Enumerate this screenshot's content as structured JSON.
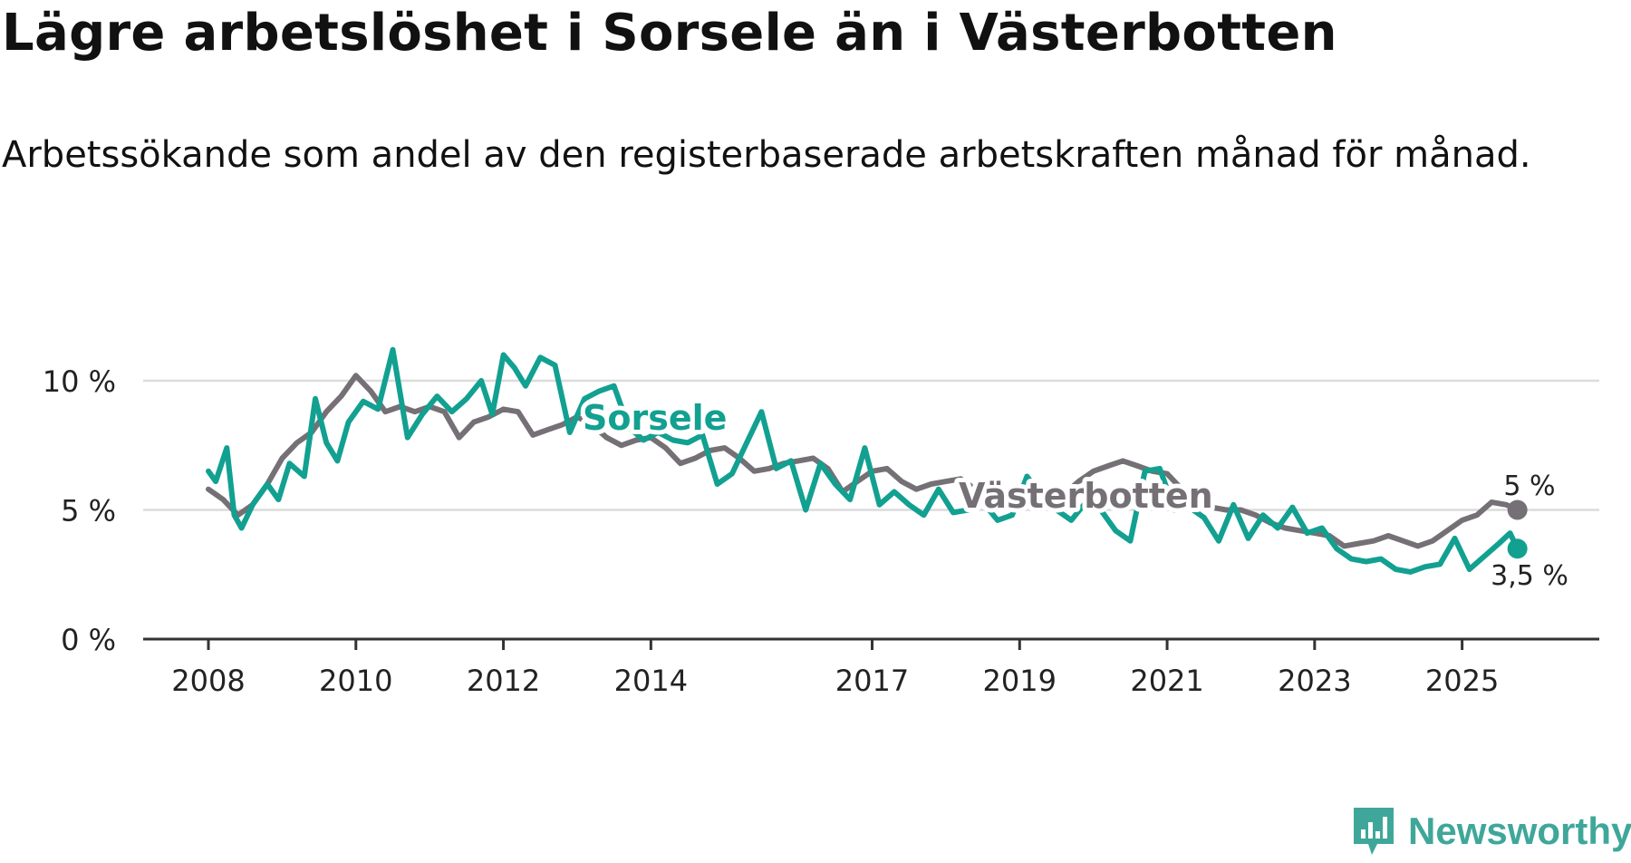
{
  "title": "Lägre arbetslöshet i Sorsele än i Västerbotten",
  "subtitle": "Arbetssökande som andel av den registerbaserade arbetskraften månad för månad.",
  "brand": "Newsworthy",
  "colors": {
    "sorsele": "#12a091",
    "vasterbotten": "#757075",
    "grid": "#dcdcdc",
    "axis": "#333333",
    "text": "#222222"
  },
  "chart_data": {
    "type": "line",
    "title": "Lägre arbetslöshet i Sorsele än i Västerbotten",
    "xlabel": "",
    "ylabel": "",
    "xlim": [
      2008.0,
      2026.0
    ],
    "ylim": [
      0,
      10
    ],
    "y_ticks": [
      0,
      5,
      10
    ],
    "y_tick_labels": [
      "0 %",
      "5 %",
      "10 %"
    ],
    "x_ticks": [
      2008,
      2010,
      2012,
      2014,
      2017,
      2019,
      2021,
      2023,
      2025
    ],
    "x_tick_labels": [
      "2008",
      "2010",
      "2012",
      "2014",
      "2017",
      "2019",
      "2021",
      "2023",
      "2025"
    ],
    "grid": "horizontal",
    "series": [
      {
        "name": "Västerbotten",
        "label": "Västerbotten",
        "end_label": "5 %",
        "x": [
          2008.0,
          2008.2,
          2008.4,
          2008.6,
          2008.8,
          2009.0,
          2009.2,
          2009.4,
          2009.6,
          2009.8,
          2010.0,
          2010.2,
          2010.4,
          2010.6,
          2010.8,
          2011.0,
          2011.2,
          2011.4,
          2011.6,
          2011.8,
          2012.0,
          2012.2,
          2012.4,
          2012.6,
          2012.8,
          2013.0,
          2013.2,
          2013.4,
          2013.6,
          2013.8,
          2014.0,
          2014.2,
          2014.4,
          2014.6,
          2014.8,
          2015.0,
          2015.2,
          2015.4,
          2015.6,
          2015.8,
          2016.0,
          2016.2,
          2016.4,
          2016.6,
          2016.8,
          2017.0,
          2017.2,
          2017.4,
          2017.6,
          2017.8,
          2018.0,
          2018.2,
          2018.4,
          2018.6,
          2018.8,
          2019.0,
          2019.2,
          2019.4,
          2019.6,
          2019.8,
          2020.0,
          2020.2,
          2020.4,
          2020.6,
          2020.8,
          2021.0,
          2021.2,
          2021.4,
          2021.6,
          2021.8,
          2022.0,
          2022.2,
          2022.4,
          2022.6,
          2022.8,
          2023.0,
          2023.2,
          2023.4,
          2023.6,
          2023.8,
          2024.0,
          2024.2,
          2024.4,
          2024.6,
          2024.8,
          2025.0,
          2025.2,
          2025.4,
          2025.6,
          2025.75
        ],
        "values": [
          5.8,
          5.4,
          4.8,
          5.2,
          6.0,
          7.0,
          7.6,
          8.0,
          8.8,
          9.4,
          10.2,
          9.6,
          8.8,
          9.0,
          8.8,
          9.0,
          8.8,
          7.8,
          8.4,
          8.6,
          8.9,
          8.8,
          7.9,
          8.1,
          8.3,
          8.6,
          8.3,
          7.8,
          7.5,
          7.7,
          7.8,
          7.4,
          6.8,
          7.0,
          7.3,
          7.4,
          7.0,
          6.5,
          6.6,
          6.8,
          6.9,
          7.0,
          6.6,
          5.7,
          6.1,
          6.5,
          6.6,
          6.1,
          5.8,
          6.0,
          6.1,
          6.2,
          5.8,
          5.6,
          5.5,
          5.4,
          5.3,
          5.2,
          5.6,
          6.1,
          6.5,
          6.7,
          6.9,
          6.7,
          6.5,
          6.4,
          5.8,
          5.4,
          5.1,
          5.0,
          5.0,
          4.8,
          4.5,
          4.3,
          4.2,
          4.1,
          4.0,
          3.6,
          3.7,
          3.8,
          4.0,
          3.8,
          3.6,
          3.8,
          4.2,
          4.6,
          4.8,
          5.3,
          5.2,
          5.0
        ]
      },
      {
        "name": "Sorsele",
        "label": "Sorsele",
        "end_label": "3,5 %",
        "x": [
          2008.0,
          2008.1,
          2008.25,
          2008.35,
          2008.45,
          2008.6,
          2008.8,
          2008.95,
          2009.1,
          2009.3,
          2009.45,
          2009.6,
          2009.75,
          2009.9,
          2010.1,
          2010.3,
          2010.5,
          2010.7,
          2010.9,
          2011.1,
          2011.3,
          2011.5,
          2011.7,
          2011.85,
          2012.0,
          2012.15,
          2012.3,
          2012.5,
          2012.7,
          2012.9,
          2013.1,
          2013.3,
          2013.5,
          2013.7,
          2013.9,
          2014.1,
          2014.3,
          2014.5,
          2014.7,
          2014.9,
          2015.1,
          2015.3,
          2015.5,
          2015.7,
          2015.9,
          2016.1,
          2016.3,
          2016.5,
          2016.7,
          2016.9,
          2017.1,
          2017.3,
          2017.5,
          2017.7,
          2017.9,
          2018.1,
          2018.3,
          2018.5,
          2018.7,
          2018.9,
          2019.1,
          2019.3,
          2019.5,
          2019.7,
          2019.9,
          2020.1,
          2020.3,
          2020.5,
          2020.7,
          2020.9,
          2021.1,
          2021.3,
          2021.5,
          2021.7,
          2021.9,
          2022.1,
          2022.3,
          2022.5,
          2022.7,
          2022.9,
          2023.1,
          2023.3,
          2023.5,
          2023.7,
          2023.9,
          2024.1,
          2024.3,
          2024.5,
          2024.7,
          2024.9,
          2025.1,
          2025.3,
          2025.5,
          2025.65,
          2025.75
        ],
        "values": [
          6.5,
          6.1,
          7.4,
          4.8,
          4.3,
          5.2,
          6.0,
          5.4,
          6.8,
          6.3,
          9.3,
          7.6,
          6.9,
          8.4,
          9.2,
          8.9,
          11.2,
          7.8,
          8.7,
          9.4,
          8.8,
          9.3,
          10.0,
          8.7,
          11.0,
          10.5,
          9.8,
          10.9,
          10.6,
          8.0,
          9.3,
          9.6,
          9.8,
          8.2,
          7.7,
          8.0,
          7.7,
          7.6,
          7.9,
          6.0,
          6.4,
          7.6,
          8.8,
          6.6,
          6.9,
          5.0,
          6.8,
          6.0,
          5.4,
          7.4,
          5.2,
          5.7,
          5.2,
          4.8,
          5.8,
          4.9,
          5.0,
          5.3,
          4.6,
          4.8,
          6.3,
          5.5,
          5.0,
          4.6,
          5.3,
          5.0,
          4.2,
          3.8,
          6.5,
          6.6,
          5.0,
          5.1,
          4.7,
          3.8,
          5.2,
          3.9,
          4.8,
          4.3,
          5.1,
          4.1,
          4.3,
          3.5,
          3.1,
          3.0,
          3.1,
          2.7,
          2.6,
          2.8,
          2.9,
          3.9,
          2.7,
          3.2,
          3.7,
          4.1,
          3.5
        ]
      }
    ]
  }
}
